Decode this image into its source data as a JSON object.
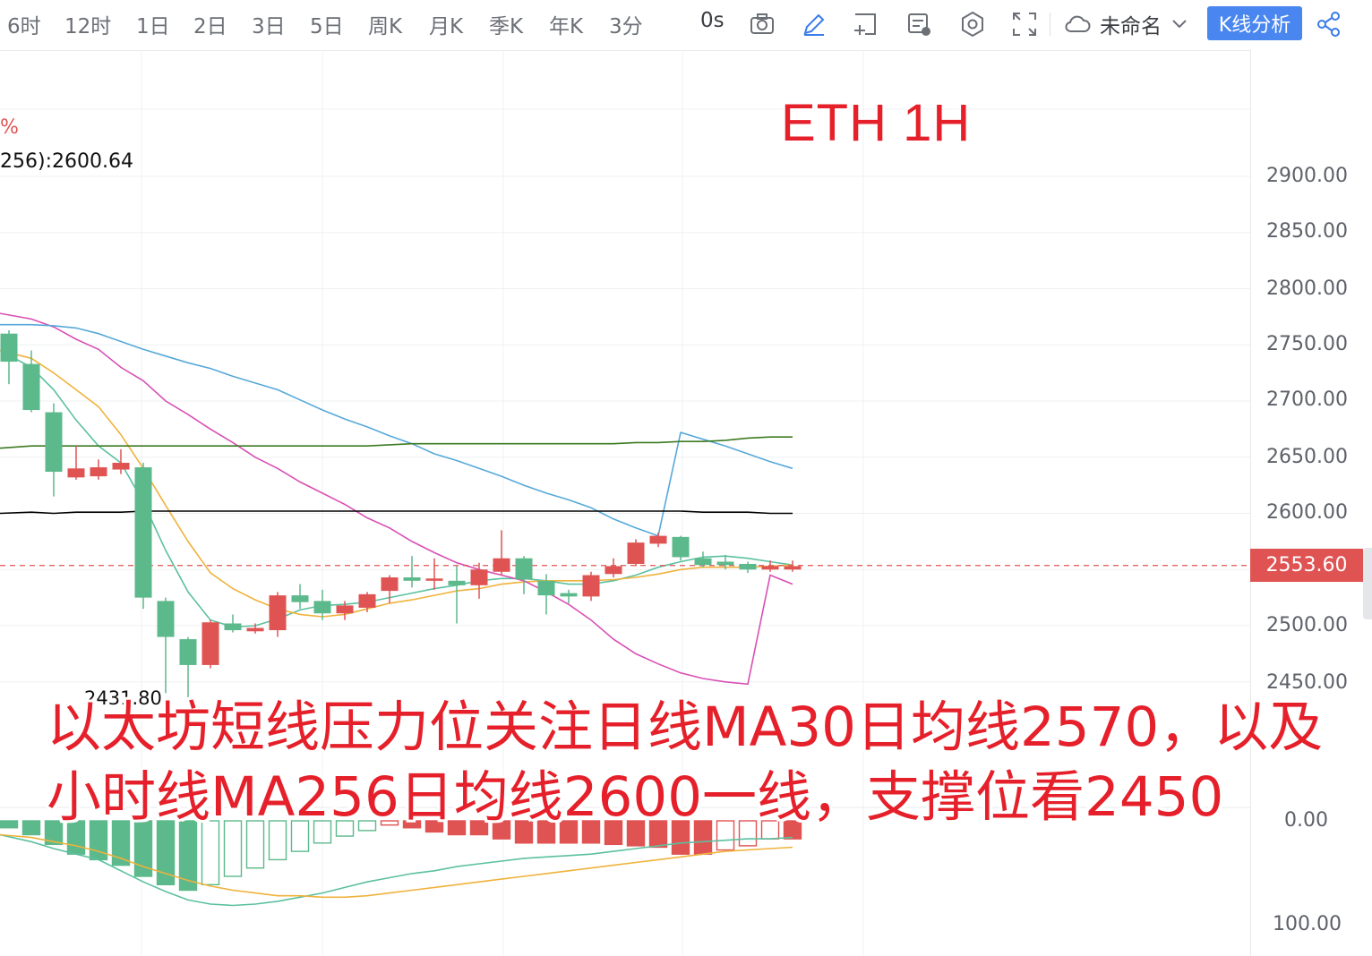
{
  "toolbar": {
    "timeframes": [
      "6时",
      "12时",
      "1日",
      "2日",
      "3日",
      "5日",
      "周K",
      "月K",
      "季K",
      "年K",
      "3分"
    ],
    "countdown": "0s",
    "layout_name": "未命名",
    "analysis_button": "K线分析",
    "icons": [
      "camera-icon",
      "pencil-icon",
      "add-frame-icon",
      "danmaku-icon",
      "settings-icon",
      "fullscreen-icon",
      "cloud-icon",
      "chevron-down-icon",
      "share-icon"
    ],
    "accent_color": "#4a86f0"
  },
  "chart": {
    "title": "ETH   1H",
    "legend_pct": "%",
    "legend_ma": "256):2600.64",
    "low_label": "2431.80",
    "current_price": "2553.60",
    "y_labels": [
      "2900.00",
      "2850.00",
      "2800.00",
      "2750.00",
      "2700.00",
      "2650.00",
      "2600.00",
      "2500.00",
      "2450.00"
    ],
    "macd_labels": [
      "0.00",
      "100.00"
    ],
    "colors": {
      "up": "#e05353",
      "down": "#5cb98b",
      "title": "#e5202a"
    }
  },
  "annotation": {
    "line1": "以太坊短线压力位关注日线MA30日均线2570，以及",
    "line2": "小时线MA256日均线2600一线，支撑位看2450"
  },
  "chart_data": {
    "type": "line",
    "candles": [
      {
        "o": 2760,
        "h": 2763,
        "l": 2715,
        "c": 2735
      },
      {
        "o": 2733,
        "h": 2745,
        "l": 2690,
        "c": 2692
      },
      {
        "o": 2690,
        "h": 2698,
        "l": 2615,
        "c": 2637
      },
      {
        "o": 2632,
        "h": 2660,
        "l": 2630,
        "c": 2640
      },
      {
        "o": 2633,
        "h": 2648,
        "l": 2630,
        "c": 2641
      },
      {
        "o": 2639,
        "h": 2657,
        "l": 2635,
        "c": 2645
      },
      {
        "o": 2641,
        "h": 2645,
        "l": 2515,
        "c": 2525
      },
      {
        "o": 2522,
        "h": 2525,
        "l": 2440,
        "c": 2490
      },
      {
        "o": 2488,
        "h": 2490,
        "l": 2432,
        "c": 2465
      },
      {
        "o": 2465,
        "h": 2505,
        "l": 2462,
        "c": 2503
      },
      {
        "o": 2502,
        "h": 2510,
        "l": 2494,
        "c": 2496
      },
      {
        "o": 2495,
        "h": 2502,
        "l": 2493,
        "c": 2498
      },
      {
        "o": 2496,
        "h": 2530,
        "l": 2490,
        "c": 2527
      },
      {
        "o": 2527,
        "h": 2537,
        "l": 2515,
        "c": 2521
      },
      {
        "o": 2522,
        "h": 2532,
        "l": 2505,
        "c": 2511
      },
      {
        "o": 2511,
        "h": 2522,
        "l": 2505,
        "c": 2518
      },
      {
        "o": 2516,
        "h": 2530,
        "l": 2512,
        "c": 2528
      },
      {
        "o": 2531,
        "h": 2545,
        "l": 2520,
        "c": 2543
      },
      {
        "o": 2543,
        "h": 2562,
        "l": 2534,
        "c": 2540
      },
      {
        "o": 2540,
        "h": 2560,
        "l": 2532,
        "c": 2542
      },
      {
        "o": 2540,
        "h": 2553,
        "l": 2502,
        "c": 2536
      },
      {
        "o": 2536,
        "h": 2556,
        "l": 2524,
        "c": 2550
      },
      {
        "o": 2548,
        "h": 2585,
        "l": 2545,
        "c": 2560
      },
      {
        "o": 2560,
        "h": 2562,
        "l": 2528,
        "c": 2541
      },
      {
        "o": 2540,
        "h": 2546,
        "l": 2510,
        "c": 2527
      },
      {
        "o": 2529,
        "h": 2532,
        "l": 2520,
        "c": 2526
      },
      {
        "o": 2526,
        "h": 2548,
        "l": 2522,
        "c": 2545
      },
      {
        "o": 2546,
        "h": 2560,
        "l": 2543,
        "c": 2553
      },
      {
        "o": 2555,
        "h": 2577,
        "l": 2553,
        "c": 2574
      },
      {
        "o": 2573,
        "h": 2583,
        "l": 2570,
        "c": 2580
      },
      {
        "o": 2579,
        "h": 2580,
        "l": 2558,
        "c": 2561
      },
      {
        "o": 2560,
        "h": 2566,
        "l": 2552,
        "c": 2554
      },
      {
        "o": 2557,
        "h": 2563,
        "l": 2550,
        "c": 2554
      },
      {
        "o": 2555,
        "h": 2557,
        "l": 2547,
        "c": 2550
      },
      {
        "o": 2550,
        "h": 2558,
        "l": 2548,
        "c": 2553
      },
      {
        "o": 2550,
        "h": 2558,
        "l": 2548,
        "c": 2553
      }
    ],
    "ma_lines": [
      {
        "color": "#5bc0a0",
        "values": [
          2745,
          2730,
          2710,
          2683,
          2660,
          2645,
          2610,
          2567,
          2530,
          2505,
          2499,
          2500,
          2506,
          2514,
          2518,
          2519,
          2521,
          2525,
          2529,
          2533,
          2536,
          2540,
          2542,
          2542,
          2540,
          2537,
          2537,
          2540,
          2545,
          2552,
          2557,
          2561,
          2562,
          2560,
          2557,
          2554
        ]
      },
      {
        "color": "#f0b23c",
        "values": [
          2745,
          2738,
          2725,
          2710,
          2695,
          2670,
          2640,
          2607,
          2575,
          2547,
          2533,
          2523,
          2515,
          2510,
          2508,
          2510,
          2515,
          2520,
          2523,
          2527,
          2531,
          2533,
          2537,
          2539,
          2540,
          2540,
          2540,
          2541,
          2543,
          2546,
          2550,
          2552,
          2552,
          2552,
          2553,
          2554
        ]
      },
      {
        "color": "#d94fb5",
        "values": [
          2778,
          2773,
          2766,
          2755,
          2746,
          2730,
          2718,
          2700,
          2688,
          2675,
          2663,
          2650,
          2640,
          2628,
          2618,
          2608,
          2596,
          2587,
          2575,
          2565,
          2556,
          2550,
          2545,
          2540,
          2530,
          2519,
          2505,
          2488,
          2475,
          2466,
          2458,
          2453,
          2450,
          2448,
          2545,
          2537
        ]
      },
      {
        "color": "#56a9d9",
        "values": [
          2768,
          2768,
          2767,
          2765,
          2760,
          2753,
          2746,
          2740,
          2734,
          2729,
          2722,
          2716,
          2710,
          2701,
          2692,
          2684,
          2677,
          2669,
          2662,
          2653,
          2647,
          2640,
          2633,
          2625,
          2618,
          2612,
          2605,
          2595,
          2587,
          2580,
          2672,
          2666,
          2660,
          2653,
          2646,
          2640
        ]
      },
      {
        "color": "#3d7a22",
        "values": [
          2658,
          2660,
          2660,
          2660,
          2660,
          2660,
          2660,
          2660,
          2660,
          2660,
          2660,
          2660,
          2660,
          2660,
          2660,
          2660,
          2660,
          2661,
          2662,
          2662,
          2662,
          2662,
          2662,
          2662,
          2662,
          2662,
          2662,
          2662,
          2663,
          2663,
          2664,
          2664,
          2665,
          2667,
          2668,
          2668
        ]
      },
      {
        "color": "#000000",
        "values": [
          2600,
          2601,
          2600,
          2601,
          2601,
          2601,
          2602,
          2602,
          2602,
          2602,
          2602,
          2602,
          2602,
          2602,
          2602,
          2602,
          2602,
          2602,
          2602,
          2602,
          2602,
          2602,
          2602,
          2602,
          2602,
          2602,
          2602,
          2602,
          2602,
          2602,
          2602,
          2601,
          2601,
          2601,
          2600,
          2600
        ]
      }
    ],
    "macd_hist": [
      -5,
      -10,
      -17,
      -24,
      -28,
      -32,
      -40,
      -46,
      -50,
      -46,
      -40,
      -34,
      -28,
      -22,
      -16,
      -11,
      -7,
      -3,
      -5,
      -8,
      -10,
      -10,
      -13,
      -16,
      -16,
      -16,
      -16,
      -17,
      -18,
      -19,
      -24,
      -24,
      -21,
      -18,
      -13,
      -13
    ],
    "macd_dif": [
      -10,
      -15,
      -20,
      -24,
      -28,
      -36,
      -44,
      -51,
      -57,
      -60,
      -61,
      -60,
      -58,
      -55,
      -52,
      -48,
      -44,
      -41,
      -38,
      -36,
      -33,
      -31,
      -29,
      -27,
      -26,
      -25,
      -24,
      -22,
      -20,
      -18,
      -16,
      -15,
      -14,
      -13,
      -13,
      -12
    ],
    "macd_dea": [
      -10,
      -12,
      -15,
      -18,
      -22,
      -27,
      -33,
      -38,
      -43,
      -47,
      -50,
      -52,
      -54,
      -54,
      -55,
      -55,
      -54,
      -52,
      -50,
      -48,
      -46,
      -44,
      -42,
      -40,
      -38,
      -36,
      -34,
      -32,
      -30,
      -28,
      -26,
      -24,
      -22,
      -21,
      -20,
      -19
    ],
    "current_price": 2553.6,
    "ylim": [
      2430,
      2900
    ]
  }
}
